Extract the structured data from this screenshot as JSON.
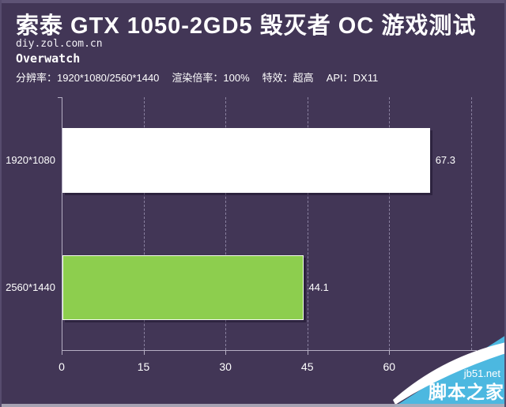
{
  "header": {
    "title": "索泰 GTX 1050-2GD5 毁灭者 OC 游戏测试",
    "site": "diy.zol.com.cn",
    "game": "Overwatch",
    "settings": [
      "分辨率：1920*1080/2560*1440",
      "渲染倍率：100%",
      "特效：超高",
      "API：DX11"
    ]
  },
  "chart_data": {
    "type": "bar",
    "orientation": "horizontal",
    "title": "Overwatch",
    "categories": [
      "1920*1080",
      "2560*1440"
    ],
    "values": [
      67.3,
      44.1
    ],
    "value_labels": [
      "67.3",
      "44.1"
    ],
    "bar_colors": [
      "#ffffff",
      "#8dce4e"
    ],
    "xlabel": "",
    "ylabel": "",
    "xlim": [
      0,
      75
    ],
    "xticks": [
      0,
      15,
      30,
      45,
      60
    ],
    "grid_values": [
      15,
      30,
      45,
      60,
      75
    ],
    "grid": "dashed-vertical",
    "legend": "none"
  },
  "watermark": {
    "site": "jb51.net",
    "name": "脚本之家",
    "color": "#4cb8e0"
  },
  "colors": {
    "background": "#423656",
    "text": "#ffffff",
    "grid": "#8a81a0",
    "axis": "#b5afc3",
    "bar_green": "#8dce4e",
    "watermark_blue": "#4cb8e0"
  }
}
